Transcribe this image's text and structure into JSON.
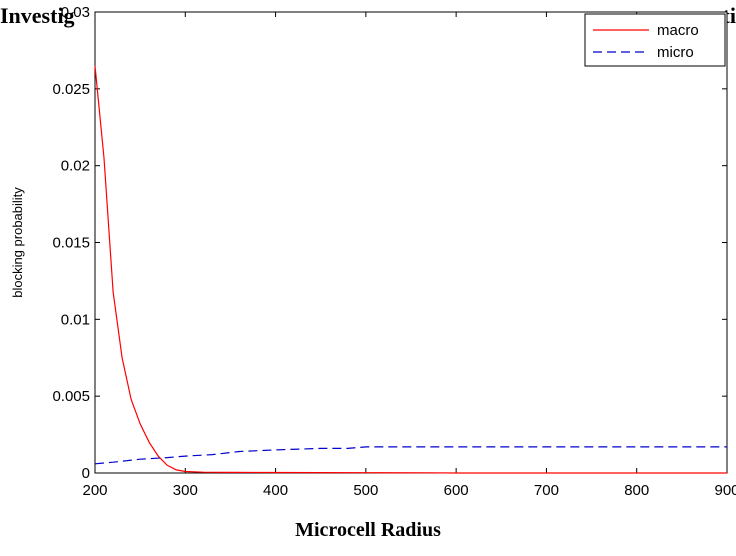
{
  "background_title": {
    "left_fragment": "Investig",
    "right_fragment": "ti"
  },
  "chart_data": {
    "type": "line",
    "xlabel": "Microcell Radius",
    "ylabel": "blocking probability",
    "xlim": [
      200,
      900
    ],
    "ylim": [
      0,
      0.03
    ],
    "xticks": [
      "200",
      "300",
      "400",
      "500",
      "600",
      "700",
      "800",
      "900"
    ],
    "yticks": [
      "0",
      "0.005",
      "0.01",
      "0.015",
      "0.02",
      "0.025",
      "0.03"
    ],
    "grid": false,
    "legend_position": "top-right",
    "series": [
      {
        "name": "macro",
        "color": "#ff0000",
        "style": "solid",
        "x": [
          200,
          210,
          220,
          230,
          240,
          250,
          260,
          270,
          280,
          290,
          300,
          320,
          350,
          400,
          500,
          570,
          600,
          700,
          800,
          900
        ],
        "y": [
          0.0265,
          0.0205,
          0.0118,
          0.0075,
          0.0048,
          0.0032,
          0.002,
          0.0011,
          0.0005,
          0.0002,
          0.0001,
          5e-05,
          4e-05,
          3e-05,
          2e-05,
          1e-05,
          0,
          0,
          0,
          0
        ]
      },
      {
        "name": "micro",
        "color": "#0000cc",
        "style": "dashed",
        "x": [
          200,
          220,
          250,
          280,
          300,
          330,
          360,
          400,
          450,
          480,
          500,
          600,
          700,
          800,
          900
        ],
        "y": [
          0.0006,
          0.0007,
          0.0009,
          0.001,
          0.0011,
          0.0012,
          0.0014,
          0.0015,
          0.0016,
          0.0016,
          0.0017,
          0.0017,
          0.0017,
          0.0017,
          0.0017
        ]
      }
    ]
  }
}
